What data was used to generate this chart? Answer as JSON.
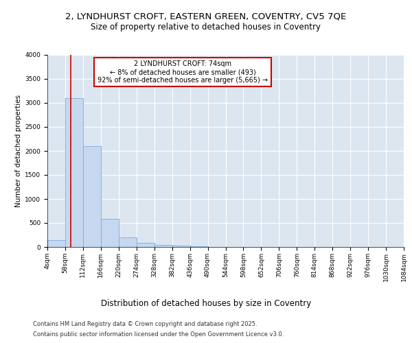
{
  "title_line1": "2, LYNDHURST CROFT, EASTERN GREEN, COVENTRY, CV5 7QE",
  "title_line2": "Size of property relative to detached houses in Coventry",
  "xlabel": "Distribution of detached houses by size in Coventry",
  "ylabel": "Number of detached properties",
  "bin_labels": [
    "4sqm",
    "58sqm",
    "112sqm",
    "166sqm",
    "220sqm",
    "274sqm",
    "328sqm",
    "382sqm",
    "436sqm",
    "490sqm",
    "544sqm",
    "598sqm",
    "652sqm",
    "706sqm",
    "760sqm",
    "814sqm",
    "868sqm",
    "922sqm",
    "976sqm",
    "1030sqm",
    "1084sqm"
  ],
  "bin_edges": [
    4,
    58,
    112,
    166,
    220,
    274,
    328,
    382,
    436,
    490,
    544,
    598,
    652,
    706,
    760,
    814,
    868,
    922,
    976,
    1030,
    1084
  ],
  "bar_heights": [
    150,
    3100,
    2100,
    580,
    200,
    80,
    50,
    30,
    15,
    5,
    2,
    0,
    0,
    0,
    0,
    0,
    0,
    0,
    0,
    0
  ],
  "bar_color": "#c5d8f0",
  "bar_edge_color": "#7aabdb",
  "vline_x": 74,
  "vline_color": "#cc0000",
  "annotation_text": "2 LYNDHURST CROFT: 74sqm\n← 8% of detached houses are smaller (493)\n92% of semi-detached houses are larger (5,665) →",
  "annotation_box_color": "#ffffff",
  "annotation_box_edge": "#cc0000",
  "ylim": [
    0,
    4000
  ],
  "yticks": [
    0,
    500,
    1000,
    1500,
    2000,
    2500,
    3000,
    3500,
    4000
  ],
  "background_color": "#dce6f0",
  "footer_line1": "Contains HM Land Registry data © Crown copyright and database right 2025.",
  "footer_line2": "Contains public sector information licensed under the Open Government Licence v3.0.",
  "grid_color": "#ffffff",
  "title_fontsize": 9.5,
  "subtitle_fontsize": 8.5,
  "xlabel_fontsize": 8.5,
  "ylabel_fontsize": 7.5,
  "tick_fontsize": 6.5,
  "annotation_fontsize": 7.0,
  "footer_fontsize": 6.0
}
